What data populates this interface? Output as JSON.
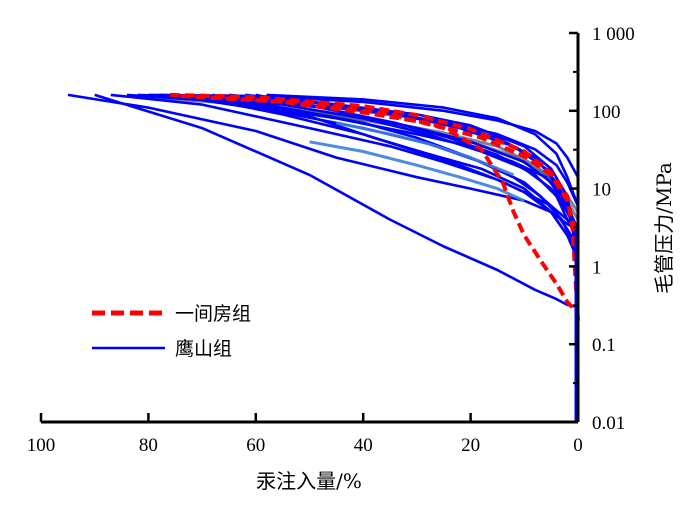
{
  "chart_data": {
    "type": "line",
    "title": "",
    "xlabel": "汞注入量/%",
    "ylabel": "毛管压力/MPa",
    "x_reversed": true,
    "xlim": [
      100,
      0
    ],
    "xticks": [
      100,
      80,
      60,
      40,
      20,
      0
    ],
    "xtick_labels": [
      "100",
      "80",
      "60",
      "40",
      "20",
      "0"
    ],
    "y_scale": "log",
    "ylim": [
      0.01,
      1000
    ],
    "yticks": [
      1000,
      100,
      10,
      1,
      0.1,
      0.01
    ],
    "ytick_labels": [
      "1 000",
      "100",
      "10",
      "1",
      "0.1",
      "0.01"
    ],
    "legend": [
      {
        "name": "一间房组",
        "color": "#ff0000",
        "style": "dashed"
      },
      {
        "name": "鹰山组",
        "color": "#0000ff",
        "style": "solid"
      }
    ],
    "colors": {
      "yijianfang": "#ff0000",
      "yingshan": "#0000ff",
      "yingshan_light": "#3a7fe0",
      "yingshan_gray": "#4a5a7a",
      "axis": "#000000"
    },
    "series": [
      {
        "name": "一间房组",
        "style": "dashed",
        "points": [
          [
            76,
            160
          ],
          [
            60,
            150
          ],
          [
            40,
            115
          ],
          [
            30,
            88
          ],
          [
            20,
            58
          ],
          [
            10,
            30
          ],
          [
            5,
            16
          ],
          [
            2,
            8
          ],
          [
            1,
            3
          ],
          [
            0,
            0.2
          ]
        ]
      },
      {
        "name": "一间房组",
        "style": "dashed",
        "points": [
          [
            68,
            150
          ],
          [
            50,
            125
          ],
          [
            35,
            90
          ],
          [
            25,
            60
          ],
          [
            18,
            32
          ],
          [
            14,
            12
          ],
          [
            12,
            5
          ],
          [
            10,
            2.5
          ],
          [
            7,
            1.2
          ],
          [
            4,
            0.6
          ],
          [
            2,
            0.35
          ],
          [
            0,
            0.25
          ]
        ]
      },
      {
        "name": "一间房组",
        "style": "dashed",
        "points": [
          [
            74,
            155
          ],
          [
            55,
            130
          ],
          [
            40,
            95
          ],
          [
            28,
            70
          ],
          [
            18,
            45
          ],
          [
            10,
            26
          ],
          [
            5,
            15
          ],
          [
            2,
            7
          ],
          [
            0,
            2
          ]
        ]
      },
      {
        "name": "鹰山组",
        "style": "solid",
        "points": [
          [
            95,
            160
          ],
          [
            80,
            110
          ],
          [
            60,
            55
          ],
          [
            45,
            25
          ],
          [
            30,
            14
          ],
          [
            20,
            10
          ],
          [
            10,
            7
          ],
          [
            5,
            5
          ],
          [
            2,
            3.5
          ],
          [
            0,
            3
          ]
        ]
      },
      {
        "name": "鹰山组",
        "style": "solid",
        "points": [
          [
            90,
            160
          ],
          [
            70,
            60
          ],
          [
            50,
            15
          ],
          [
            35,
            4
          ],
          [
            25,
            1.8
          ],
          [
            15,
            0.9
          ],
          [
            8,
            0.5
          ],
          [
            4,
            0.38
          ],
          [
            2,
            0.32
          ],
          [
            0,
            0.3
          ]
        ]
      },
      {
        "name": "鹰山组",
        "style": "solid",
        "points": [
          [
            87,
            160
          ],
          [
            70,
            120
          ],
          [
            50,
            60
          ],
          [
            35,
            35
          ],
          [
            25,
            22
          ],
          [
            15,
            13
          ],
          [
            10,
            9
          ],
          [
            5,
            5
          ],
          [
            2,
            2.5
          ],
          [
            0,
            1.2
          ]
        ]
      },
      {
        "name": "鹰山组",
        "style": "solid",
        "points": [
          [
            84,
            160
          ],
          [
            65,
            130
          ],
          [
            45,
            80
          ],
          [
            30,
            50
          ],
          [
            20,
            35
          ],
          [
            12,
            22
          ],
          [
            6,
            14
          ],
          [
            3,
            8
          ],
          [
            1,
            4
          ],
          [
            0,
            2
          ]
        ]
      },
      {
        "name": "鹰山组",
        "style": "solid",
        "points": [
          [
            82,
            160
          ],
          [
            60,
            140
          ],
          [
            40,
            100
          ],
          [
            25,
            72
          ],
          [
            15,
            50
          ],
          [
            8,
            32
          ],
          [
            4,
            20
          ],
          [
            2,
            12
          ],
          [
            0,
            6
          ]
        ]
      },
      {
        "name": "鹰山组",
        "style": "solid",
        "points": [
          [
            80,
            160
          ],
          [
            60,
            155
          ],
          [
            40,
            130
          ],
          [
            25,
            100
          ],
          [
            15,
            75
          ],
          [
            8,
            55
          ],
          [
            4,
            38
          ],
          [
            2,
            25
          ],
          [
            0,
            14
          ]
        ]
      },
      {
        "name": "鹰山组",
        "style": "solid",
        "points": [
          [
            78,
            160
          ],
          [
            60,
            150
          ],
          [
            45,
            120
          ],
          [
            30,
            90
          ],
          [
            20,
            65
          ],
          [
            10,
            35
          ],
          [
            5,
            18
          ],
          [
            2,
            8
          ],
          [
            1,
            3
          ],
          [
            0,
            1
          ]
        ]
      },
      {
        "name": "鹰山组",
        "style": "solid",
        "points": [
          [
            76,
            160
          ],
          [
            55,
            120
          ],
          [
            40,
            80
          ],
          [
            28,
            50
          ],
          [
            18,
            30
          ],
          [
            10,
            18
          ],
          [
            5,
            10
          ],
          [
            2,
            5
          ],
          [
            0,
            2.5
          ]
        ]
      },
      {
        "name": "鹰山组",
        "style": "solid",
        "points": [
          [
            73,
            160
          ],
          [
            55,
            90
          ],
          [
            40,
            50
          ],
          [
            30,
            30
          ],
          [
            22,
            20
          ],
          [
            15,
            13
          ],
          [
            10,
            9
          ],
          [
            5,
            6
          ],
          [
            2,
            4
          ],
          [
            0,
            3
          ]
        ]
      },
      {
        "name": "鹰山组",
        "style": "solid",
        "points": [
          [
            70,
            160
          ],
          [
            55,
            110
          ],
          [
            40,
            70
          ],
          [
            30,
            45
          ],
          [
            20,
            25
          ],
          [
            12,
            14
          ],
          [
            7,
            8
          ],
          [
            3,
            4
          ],
          [
            1,
            2
          ],
          [
            0,
            1
          ]
        ]
      },
      {
        "name": "鹰山组",
        "style": "solid",
        "points": [
          [
            68,
            160
          ],
          [
            50,
            85
          ],
          [
            38,
            45
          ],
          [
            28,
            28
          ],
          [
            18,
            18
          ],
          [
            10,
            10
          ],
          [
            5,
            5
          ],
          [
            2,
            2.5
          ],
          [
            0,
            1.5
          ]
        ]
      },
      {
        "name": "鹰山组",
        "style": "solid",
        "points": [
          [
            65,
            160
          ],
          [
            50,
            130
          ],
          [
            35,
            95
          ],
          [
            25,
            70
          ],
          [
            15,
            45
          ],
          [
            8,
            25
          ],
          [
            4,
            12
          ],
          [
            2,
            6
          ],
          [
            0,
            3
          ]
        ]
      },
      {
        "name": "鹰山组",
        "style": "solid",
        "points": [
          [
            62,
            160
          ],
          [
            45,
            120
          ],
          [
            32,
            85
          ],
          [
            22,
            60
          ],
          [
            12,
            35
          ],
          [
            6,
            18
          ],
          [
            3,
            8
          ],
          [
            1,
            3.5
          ],
          [
            0,
            2
          ]
        ]
      },
      {
        "name": "鹰山组",
        "style": "solid",
        "points": [
          [
            60,
            160
          ],
          [
            45,
            100
          ],
          [
            30,
            60
          ],
          [
            20,
            40
          ],
          [
            10,
            22
          ],
          [
            5,
            12
          ],
          [
            2,
            5
          ],
          [
            0,
            2.5
          ]
        ]
      },
      {
        "name": "鹰山组",
        "style": "solid",
        "points": [
          [
            58,
            160
          ],
          [
            40,
            140
          ],
          [
            25,
            110
          ],
          [
            15,
            80
          ],
          [
            8,
            50
          ],
          [
            4,
            28
          ],
          [
            2,
            14
          ],
          [
            0,
            6
          ]
        ]
      },
      {
        "name": "鹰山组",
        "style": "solid",
        "points": [
          [
            75,
            155
          ],
          [
            55,
            95
          ],
          [
            40,
            60
          ],
          [
            28,
            38
          ],
          [
            18,
            22
          ],
          [
            10,
            12
          ],
          [
            5,
            6
          ],
          [
            2,
            3
          ],
          [
            0,
            1.8
          ]
        ]
      },
      {
        "name": "鹰山组",
        "style": "solid",
        "points": [
          [
            66,
            158
          ],
          [
            48,
            110
          ],
          [
            34,
            70
          ],
          [
            24,
            45
          ],
          [
            15,
            27
          ],
          [
            8,
            15
          ],
          [
            4,
            8
          ],
          [
            2,
            4
          ],
          [
            0,
            2.2
          ]
        ]
      },
      {
        "name": "鹰山组",
        "style": "light",
        "points": [
          [
            50,
            40
          ],
          [
            40,
            30
          ],
          [
            30,
            20
          ],
          [
            22,
            14
          ],
          [
            15,
            10
          ],
          [
            10,
            7
          ]
        ]
      },
      {
        "name": "鹰山组",
        "style": "light",
        "points": [
          [
            45,
            70
          ],
          [
            35,
            50
          ],
          [
            28,
            38
          ],
          [
            20,
            25
          ],
          [
            12,
            15
          ]
        ]
      },
      {
        "name": "鹰山组",
        "style": "gray",
        "points": [
          [
            80,
            150
          ],
          [
            65,
            125
          ],
          [
            50,
            95
          ],
          [
            35,
            70
          ],
          [
            25,
            52
          ],
          [
            15,
            35
          ],
          [
            8,
            20
          ],
          [
            4,
            12
          ],
          [
            2,
            8
          ],
          [
            0,
            5
          ]
        ]
      },
      {
        "name": "鹰山组",
        "style": "gray",
        "points": [
          [
            70,
            140
          ],
          [
            55,
            110
          ],
          [
            42,
            80
          ],
          [
            30,
            58
          ],
          [
            20,
            40
          ],
          [
            12,
            26
          ],
          [
            6,
            15
          ],
          [
            3,
            9
          ],
          [
            0,
            4
          ]
        ]
      }
    ]
  }
}
